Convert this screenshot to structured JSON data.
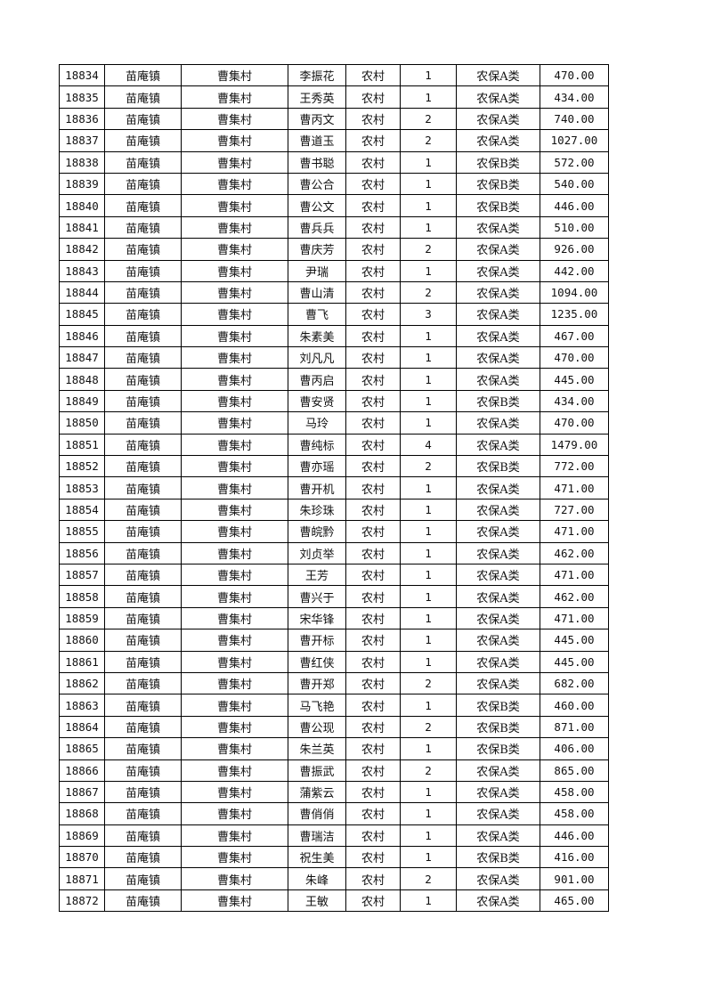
{
  "table": {
    "rows": [
      [
        "18834",
        "苗庵镇",
        "曹集村",
        "李振花",
        "农村",
        "1",
        "农保A类",
        "470.00"
      ],
      [
        "18835",
        "苗庵镇",
        "曹集村",
        "王秀英",
        "农村",
        "1",
        "农保A类",
        "434.00"
      ],
      [
        "18836",
        "苗庵镇",
        "曹集村",
        "曹丙文",
        "农村",
        "2",
        "农保A类",
        "740.00"
      ],
      [
        "18837",
        "苗庵镇",
        "曹集村",
        "曹道玉",
        "农村",
        "2",
        "农保A类",
        "1027.00"
      ],
      [
        "18838",
        "苗庵镇",
        "曹集村",
        "曹书聪",
        "农村",
        "1",
        "农保B类",
        "572.00"
      ],
      [
        "18839",
        "苗庵镇",
        "曹集村",
        "曹公合",
        "农村",
        "1",
        "农保B类",
        "540.00"
      ],
      [
        "18840",
        "苗庵镇",
        "曹集村",
        "曹公文",
        "农村",
        "1",
        "农保B类",
        "446.00"
      ],
      [
        "18841",
        "苗庵镇",
        "曹集村",
        "曹兵兵",
        "农村",
        "1",
        "农保A类",
        "510.00"
      ],
      [
        "18842",
        "苗庵镇",
        "曹集村",
        "曹庆芳",
        "农村",
        "2",
        "农保A类",
        "926.00"
      ],
      [
        "18843",
        "苗庵镇",
        "曹集村",
        "尹瑞",
        "农村",
        "1",
        "农保A类",
        "442.00"
      ],
      [
        "18844",
        "苗庵镇",
        "曹集村",
        "曹山清",
        "农村",
        "2",
        "农保A类",
        "1094.00"
      ],
      [
        "18845",
        "苗庵镇",
        "曹集村",
        "曹飞",
        "农村",
        "3",
        "农保A类",
        "1235.00"
      ],
      [
        "18846",
        "苗庵镇",
        "曹集村",
        "朱素美",
        "农村",
        "1",
        "农保A类",
        "467.00"
      ],
      [
        "18847",
        "苗庵镇",
        "曹集村",
        "刘凡凡",
        "农村",
        "1",
        "农保A类",
        "470.00"
      ],
      [
        "18848",
        "苗庵镇",
        "曹集村",
        "曹丙启",
        "农村",
        "1",
        "农保A类",
        "445.00"
      ],
      [
        "18849",
        "苗庵镇",
        "曹集村",
        "曹安贤",
        "农村",
        "1",
        "农保B类",
        "434.00"
      ],
      [
        "18850",
        "苗庵镇",
        "曹集村",
        "马玲",
        "农村",
        "1",
        "农保A类",
        "470.00"
      ],
      [
        "18851",
        "苗庵镇",
        "曹集村",
        "曹纯标",
        "农村",
        "4",
        "农保A类",
        "1479.00"
      ],
      [
        "18852",
        "苗庵镇",
        "曹集村",
        "曹亦瑶",
        "农村",
        "2",
        "农保B类",
        "772.00"
      ],
      [
        "18853",
        "苗庵镇",
        "曹集村",
        "曹开机",
        "农村",
        "1",
        "农保A类",
        "471.00"
      ],
      [
        "18854",
        "苗庵镇",
        "曹集村",
        "朱珍珠",
        "农村",
        "1",
        "农保A类",
        "727.00"
      ],
      [
        "18855",
        "苗庵镇",
        "曹集村",
        "曹皖黔",
        "农村",
        "1",
        "农保A类",
        "471.00"
      ],
      [
        "18856",
        "苗庵镇",
        "曹集村",
        "刘贞举",
        "农村",
        "1",
        "农保A类",
        "462.00"
      ],
      [
        "18857",
        "苗庵镇",
        "曹集村",
        "王芳",
        "农村",
        "1",
        "农保A类",
        "471.00"
      ],
      [
        "18858",
        "苗庵镇",
        "曹集村",
        "曹兴于",
        "农村",
        "1",
        "农保A类",
        "462.00"
      ],
      [
        "18859",
        "苗庵镇",
        "曹集村",
        "宋华锋",
        "农村",
        "1",
        "农保A类",
        "471.00"
      ],
      [
        "18860",
        "苗庵镇",
        "曹集村",
        "曹开标",
        "农村",
        "1",
        "农保A类",
        "445.00"
      ],
      [
        "18861",
        "苗庵镇",
        "曹集村",
        "曹红侠",
        "农村",
        "1",
        "农保A类",
        "445.00"
      ],
      [
        "18862",
        "苗庵镇",
        "曹集村",
        "曹开郑",
        "农村",
        "2",
        "农保A类",
        "682.00"
      ],
      [
        "18863",
        "苗庵镇",
        "曹集村",
        "马飞艳",
        "农村",
        "1",
        "农保B类",
        "460.00"
      ],
      [
        "18864",
        "苗庵镇",
        "曹集村",
        "曹公现",
        "农村",
        "2",
        "农保B类",
        "871.00"
      ],
      [
        "18865",
        "苗庵镇",
        "曹集村",
        "朱兰英",
        "农村",
        "1",
        "农保B类",
        "406.00"
      ],
      [
        "18866",
        "苗庵镇",
        "曹集村",
        "曹振武",
        "农村",
        "2",
        "农保A类",
        "865.00"
      ],
      [
        "18867",
        "苗庵镇",
        "曹集村",
        "蒲紫云",
        "农村",
        "1",
        "农保A类",
        "458.00"
      ],
      [
        "18868",
        "苗庵镇",
        "曹集村",
        "曹俏俏",
        "农村",
        "1",
        "农保A类",
        "458.00"
      ],
      [
        "18869",
        "苗庵镇",
        "曹集村",
        "曹瑞洁",
        "农村",
        "1",
        "农保A类",
        "446.00"
      ],
      [
        "18870",
        "苗庵镇",
        "曹集村",
        "祝生美",
        "农村",
        "1",
        "农保B类",
        "416.00"
      ],
      [
        "18871",
        "苗庵镇",
        "曹集村",
        "朱峰",
        "农村",
        "2",
        "农保A类",
        "901.00"
      ],
      [
        "18872",
        "苗庵镇",
        "曹集村",
        "王敏",
        "农村",
        "1",
        "农保A类",
        "465.00"
      ]
    ]
  }
}
